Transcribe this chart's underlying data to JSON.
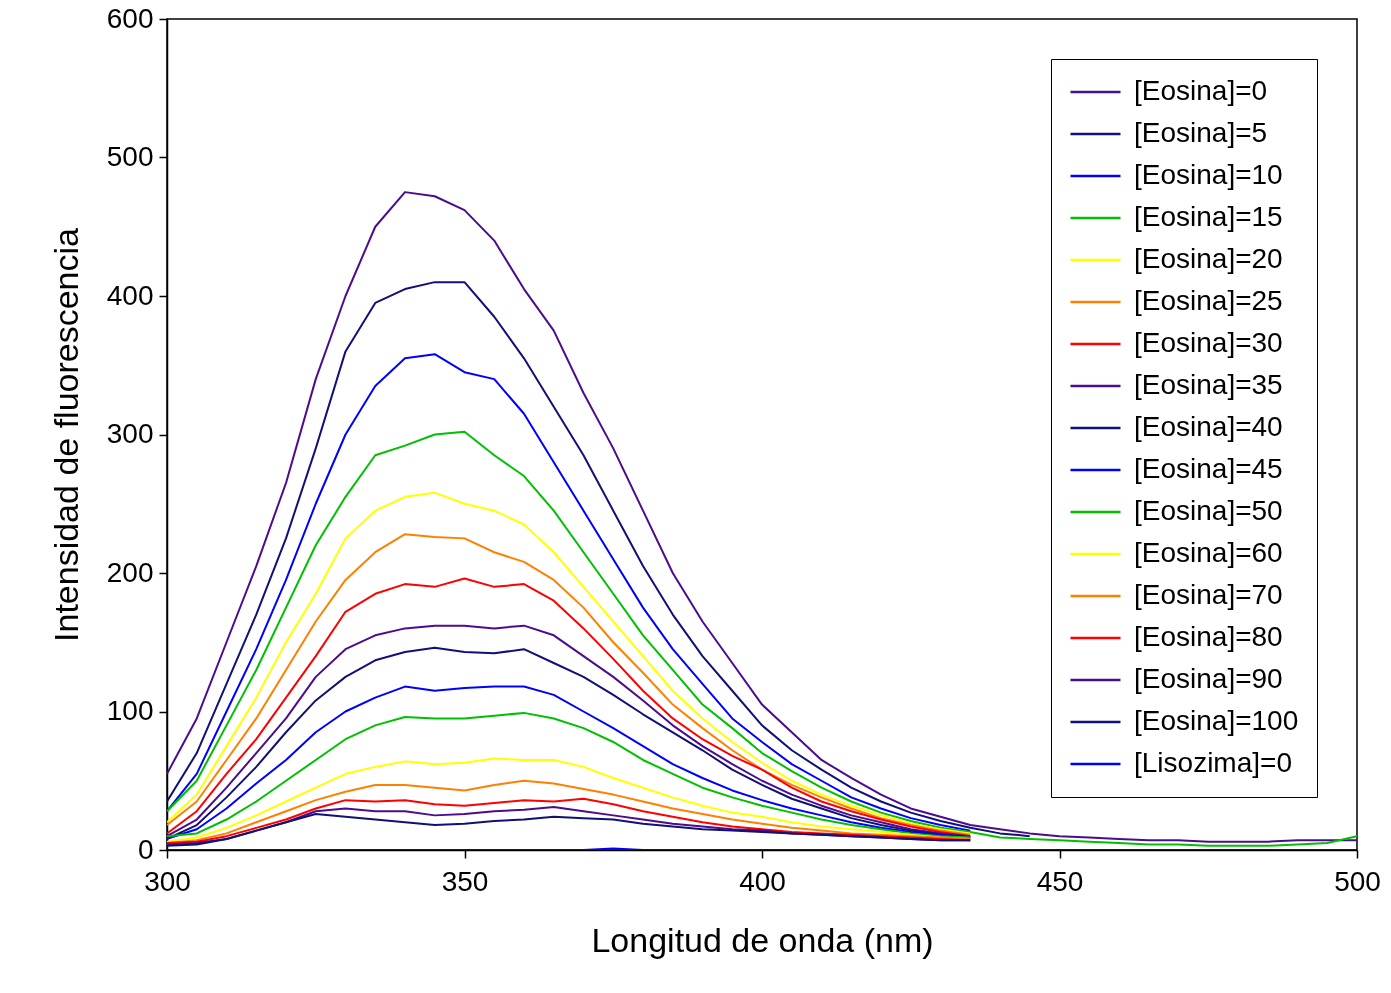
{
  "chart_data": {
    "type": "line",
    "xlabel": "Longitud de onda (nm)",
    "ylabel": "Intensidad de fluorescencia",
    "x": [
      300,
      305,
      310,
      315,
      320,
      325,
      330,
      335,
      340,
      345,
      350,
      355,
      360,
      365,
      370,
      375,
      380,
      385,
      390,
      395,
      400,
      405,
      410,
      415,
      420,
      425,
      430,
      435,
      440,
      445,
      450,
      455,
      460,
      465,
      470,
      475,
      480,
      485,
      490,
      495,
      500
    ],
    "xlim": [
      300,
      500
    ],
    "xticks": [
      300,
      350,
      400,
      450,
      500
    ],
    "ylim": [
      0,
      600
    ],
    "yticks": [
      0,
      100,
      200,
      300,
      400,
      500,
      600
    ],
    "grid": false,
    "legend": "top right",
    "line_style": "solid",
    "marker": "none",
    "series": [
      {
        "name": "[Eosina]=0",
        "color": "#4b0c8f",
        "values": [
          55,
          95,
          150,
          205,
          265,
          340,
          400,
          450,
          475,
          472,
          462,
          440,
          405,
          375,
          330,
          290,
          245,
          200,
          165,
          135,
          105,
          85,
          65,
          52,
          40,
          30,
          24,
          18,
          15,
          12,
          10,
          9,
          8,
          7,
          7,
          6,
          6,
          6,
          7,
          7,
          7
        ]
      },
      {
        "name": "[Eosina]=5",
        "color": "#101077",
        "values": [
          35,
          70,
          120,
          170,
          225,
          290,
          360,
          395,
          405,
          410,
          410,
          385,
          355,
          320,
          285,
          245,
          205,
          170,
          140,
          115,
          90,
          72,
          58,
          45,
          35,
          27,
          21,
          16,
          12,
          10,
          null,
          null,
          null,
          null,
          null,
          null,
          null,
          null,
          null,
          null,
          null
        ]
      },
      {
        "name": "[Eosina]=10",
        "color": "#0000ff",
        "values": [
          28,
          55,
          100,
          145,
          195,
          250,
          300,
          335,
          355,
          358,
          345,
          340,
          315,
          280,
          245,
          210,
          175,
          145,
          120,
          95,
          78,
          62,
          50,
          38,
          30,
          23,
          18,
          14,
          null,
          null,
          null,
          null,
          null,
          null,
          null,
          null,
          null,
          null,
          null,
          null,
          null
        ]
      },
      {
        "name": "[Eosina]=15",
        "color": "#00c000",
        "values": [
          28,
          50,
          90,
          130,
          175,
          220,
          255,
          285,
          292,
          300,
          302,
          285,
          270,
          245,
          215,
          185,
          155,
          130,
          105,
          88,
          70,
          57,
          45,
          35,
          27,
          21,
          16,
          13,
          9,
          8,
          7,
          6,
          5,
          4,
          4,
          3,
          3,
          3,
          4,
          5,
          10
        ]
      },
      {
        "name": "[Eosina]=20",
        "color": "#ffff00",
        "values": [
          20,
          40,
          75,
          110,
          150,
          185,
          225,
          245,
          255,
          258,
          250,
          245,
          235,
          215,
          190,
          165,
          140,
          115,
          95,
          78,
          63,
          50,
          40,
          32,
          25,
          19,
          15,
          12,
          null,
          null,
          null,
          null,
          null,
          null,
          null,
          null,
          null,
          null,
          null,
          null,
          null
        ]
      },
      {
        "name": "[Eosina]=25",
        "color": "#ff8000",
        "values": [
          18,
          35,
          65,
          95,
          130,
          165,
          195,
          215,
          228,
          226,
          225,
          215,
          208,
          195,
          175,
          150,
          128,
          105,
          88,
          72,
          58,
          47,
          38,
          30,
          23,
          18,
          14,
          11,
          null,
          null,
          null,
          null,
          null,
          null,
          null,
          null,
          null,
          null,
          null,
          null,
          null
        ]
      },
      {
        "name": "[Eosina]=30",
        "color": "#ff0000",
        "values": [
          12,
          28,
          55,
          80,
          110,
          140,
          172,
          185,
          192,
          190,
          196,
          190,
          192,
          180,
          160,
          138,
          115,
          95,
          80,
          68,
          58,
          45,
          35,
          28,
          22,
          17,
          13,
          10,
          null,
          null,
          null,
          null,
          null,
          null,
          null,
          null,
          null,
          null,
          null,
          null,
          null
        ]
      },
      {
        "name": "[Eosina]=35",
        "color": "#4b0c8f",
        "values": [
          10,
          22,
          45,
          70,
          95,
          125,
          145,
          155,
          160,
          162,
          162,
          160,
          162,
          155,
          140,
          125,
          108,
          90,
          75,
          62,
          50,
          40,
          32,
          25,
          20,
          15,
          12,
          10,
          null,
          null,
          null,
          null,
          null,
          null,
          null,
          null,
          null,
          null,
          null,
          null,
          null
        ]
      },
      {
        "name": "[Eosina]=40",
        "color": "#101077",
        "values": [
          8,
          18,
          38,
          60,
          85,
          108,
          125,
          137,
          143,
          146,
          143,
          142,
          145,
          135,
          125,
          112,
          98,
          85,
          72,
          58,
          47,
          37,
          30,
          23,
          18,
          14,
          11,
          9,
          null,
          null,
          null,
          null,
          null,
          null,
          null,
          null,
          null,
          null,
          null,
          null,
          null
        ]
      },
      {
        "name": "[Eosina]=45",
        "color": "#0000ff",
        "values": [
          8,
          15,
          30,
          48,
          65,
          85,
          100,
          110,
          118,
          115,
          117,
          118,
          118,
          112,
          100,
          88,
          75,
          62,
          52,
          43,
          36,
          30,
          25,
          20,
          16,
          13,
          11,
          9,
          null,
          null,
          null,
          null,
          null,
          null,
          null,
          null,
          null,
          null,
          null,
          null,
          null
        ]
      },
      {
        "name": "[Eosina]=50",
        "color": "#00c000",
        "values": [
          10,
          12,
          22,
          35,
          50,
          65,
          80,
          90,
          96,
          95,
          95,
          97,
          99,
          95,
          88,
          78,
          65,
          55,
          45,
          38,
          32,
          27,
          22,
          18,
          15,
          12,
          10,
          9,
          null,
          null,
          null,
          null,
          null,
          null,
          null,
          null,
          null,
          null,
          null,
          null,
          null
        ]
      },
      {
        "name": "[Eosina]=60",
        "color": "#ffff00",
        "values": [
          6,
          9,
          16,
          25,
          35,
          45,
          55,
          60,
          64,
          62,
          63,
          66,
          65,
          65,
          60,
          52,
          45,
          38,
          32,
          27,
          24,
          20,
          17,
          15,
          13,
          11,
          9,
          8,
          null,
          null,
          null,
          null,
          null,
          null,
          null,
          null,
          null,
          null,
          null,
          null,
          null
        ]
      },
      {
        "name": "[Eosina]=70",
        "color": "#ff8000",
        "values": [
          5,
          7,
          12,
          20,
          28,
          36,
          42,
          47,
          47,
          45,
          43,
          47,
          50,
          48,
          44,
          40,
          35,
          30,
          26,
          22,
          19,
          16,
          14,
          12,
          11,
          10,
          9,
          8,
          null,
          null,
          null,
          null,
          null,
          null,
          null,
          null,
          null,
          null,
          null,
          null,
          null
        ]
      },
      {
        "name": "[Eosina]=80",
        "color": "#ff0000",
        "values": [
          5,
          6,
          10,
          16,
          22,
          30,
          36,
          35,
          36,
          33,
          32,
          34,
          36,
          35,
          37,
          33,
          28,
          24,
          20,
          17,
          15,
          13,
          12,
          11,
          10,
          9,
          8,
          7,
          null,
          null,
          null,
          null,
          null,
          null,
          null,
          null,
          null,
          null,
          null,
          null,
          null
        ]
      },
      {
        "name": "[Eosina]=90",
        "color": "#4b0c8f",
        "values": [
          4,
          5,
          8,
          14,
          20,
          28,
          30,
          28,
          28,
          25,
          26,
          28,
          29,
          31,
          28,
          25,
          22,
          19,
          17,
          15,
          14,
          12,
          11,
          10,
          9,
          8,
          7,
          7,
          null,
          null,
          null,
          null,
          null,
          null,
          null,
          null,
          null,
          null,
          null,
          null,
          null
        ]
      },
      {
        "name": "[Eosina]=100",
        "color": "#101077",
        "values": [
          3,
          4,
          8,
          14,
          20,
          26,
          24,
          22,
          20,
          18,
          19,
          21,
          22,
          24,
          23,
          22,
          19,
          17,
          15,
          14,
          13,
          12,
          11,
          10,
          9,
          8,
          7,
          7,
          null,
          null,
          null,
          null,
          null,
          null,
          null,
          null,
          null,
          null,
          null,
          null,
          null
        ]
      },
      {
        "name": "[Lisozima]=0",
        "color": "#0000ff",
        "values": [
          0,
          0,
          0,
          0,
          0,
          0,
          0,
          0,
          0,
          0,
          0,
          0,
          0,
          0,
          0,
          1,
          0,
          0,
          0,
          0,
          0,
          0,
          0,
          0,
          0,
          0,
          0,
          0,
          0,
          0,
          0,
          0,
          0,
          0,
          0,
          0,
          0,
          0,
          0,
          0,
          0
        ]
      }
    ]
  }
}
